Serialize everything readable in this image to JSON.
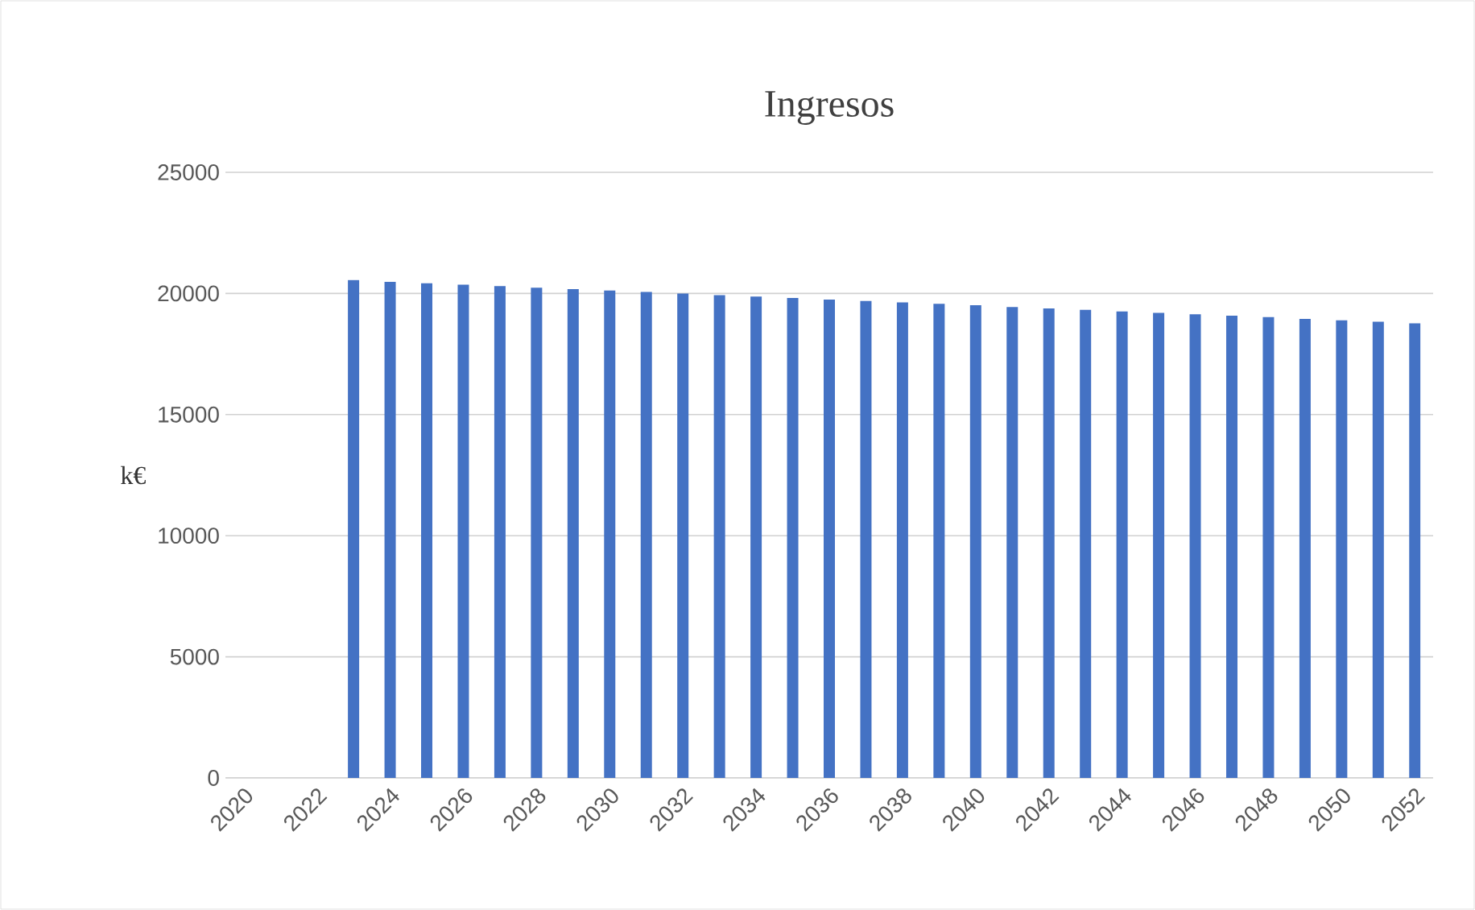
{
  "chart_data": {
    "type": "bar",
    "title": "Ingresos",
    "ylabel": "k€",
    "categories": [
      "2020",
      null,
      "2022",
      null,
      "2024",
      null,
      "2026",
      null,
      "2028",
      null,
      "2030",
      null,
      "2032",
      null,
      "2034",
      null,
      "2036",
      null,
      "2038",
      null,
      "2040",
      null,
      "2042",
      null,
      "2044",
      null,
      "2046",
      null,
      "2048",
      null,
      "2050",
      null,
      "2052"
    ],
    "values": [
      null,
      null,
      null,
      20550,
      20480,
      20420,
      20360,
      20300,
      20240,
      20180,
      20120,
      20060,
      20000,
      19930,
      19870,
      19810,
      19750,
      19690,
      19630,
      19570,
      19510,
      19440,
      19380,
      19320,
      19260,
      19200,
      19140,
      19080,
      19020,
      18950,
      18890,
      18830,
      18770
    ],
    "color": "#4472c4",
    "ylim": [
      0,
      25000
    ],
    "yticks": [
      0,
      5000,
      10000,
      15000,
      20000,
      25000
    ],
    "grid": "y"
  }
}
